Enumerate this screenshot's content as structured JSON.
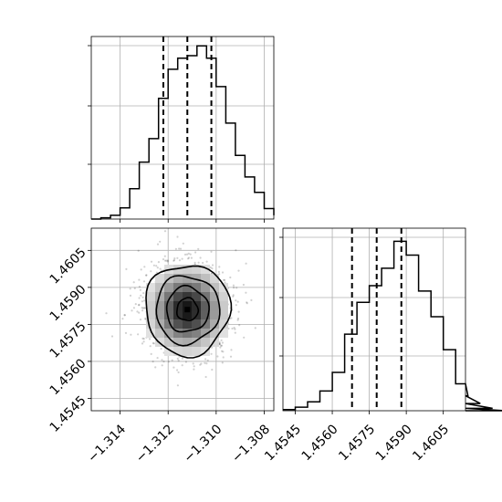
{
  "chart_data": [
    {
      "type": "histogram",
      "panel": "top-left",
      "xlim": [
        -1.3152,
        -1.3076
      ],
      "bin_width": 0.0004,
      "values": [
        0,
        0.2,
        0.6,
        1.8,
        4.9,
        9.2,
        13.0,
        19.5,
        24.2,
        26.0,
        26.4,
        28.0,
        26.0,
        21.4,
        15.5,
        10.3,
        6.8,
        4.3,
        1.7,
        0.6
      ],
      "ylim": [
        0,
        29.5
      ],
      "quantiles": [
        -1.3122,
        -1.3112,
        -1.3102
      ],
      "grid": true,
      "x_tick_labels_shown": false,
      "y_tick_labels_shown": false
    },
    {
      "type": "histogram",
      "panel": "bottom-right",
      "xlim": [
        1.454,
        1.4614
      ],
      "bin_width": 0.0005,
      "values": [
        0.2,
        0.6,
        1.5,
        3.3,
        6.4,
        12.8,
        18.1,
        20.9,
        23.8,
        28.3,
        26.0,
        20.0,
        15.7,
        10.2,
        4.5,
        2.5,
        1.2,
        0.4,
        0.0
      ],
      "ylim": [
        0,
        30.5
      ],
      "quantiles": [
        1.4568,
        1.4578,
        1.4588
      ],
      "x_ticks": [
        "1.4545",
        "1.4560",
        "1.4575",
        "1.4590",
        "1.4605"
      ],
      "x_tick_values": [
        1.4545,
        1.456,
        1.4575,
        1.459,
        1.4605
      ],
      "grid": true,
      "y_tick_labels_shown": false
    },
    {
      "type": "scatter",
      "subtype": "2d-histogram-with-contours",
      "panel": "bottom-left",
      "xlim": [
        -1.3152,
        -1.3076
      ],
      "ylim": [
        1.454,
        1.4614
      ],
      "center": [
        -1.3112,
        1.4581
      ],
      "sd": [
        0.00088,
        0.00092
      ],
      "x_ticks": [
        "−1.314",
        "−1.312",
        "−1.310",
        "−1.308"
      ],
      "x_tick_values": [
        -1.314,
        -1.312,
        -1.31,
        -1.308
      ],
      "y_ticks": [
        "1.4545",
        "1.4560",
        "1.4575",
        "1.4590",
        "1.4605"
      ],
      "y_tick_values": [
        1.4545,
        1.456,
        1.4575,
        1.459,
        1.4605
      ],
      "contour_sigma_levels": [
        0.5,
        1.0,
        1.5,
        2.0
      ],
      "grid": true
    }
  ]
}
